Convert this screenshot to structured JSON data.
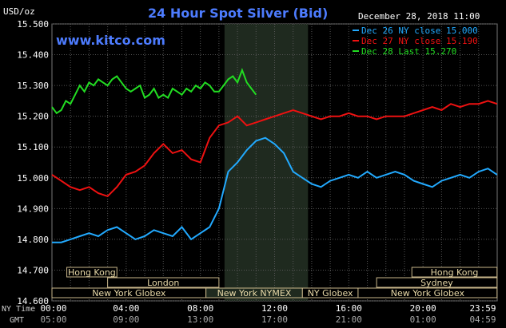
{
  "chart_data": {
    "type": "line",
    "title": "24 Hour Spot Silver (Bid)",
    "ylabel": "USD/oz",
    "date": "December 28, 2018 11:00",
    "watermark": "www.kitco.com",
    "ylim": [
      14.6,
      15.5
    ],
    "yticks": [
      "15.500",
      "15.400",
      "15.300",
      "15.200",
      "15.100",
      "15.000",
      "14.900",
      "14.800",
      "14.700",
      "14.600"
    ],
    "xlim": [
      0,
      24
    ],
    "xticks_ny": [
      "00:00",
      "04:00",
      "08:00",
      "12:00",
      "16:00",
      "20:00",
      "23:59"
    ],
    "xticks_gmt": [
      "05:00",
      "09:00",
      "13:00",
      "17:00",
      "21:00",
      "01:00",
      "04:59"
    ],
    "x_row_labels": [
      "NY Time",
      "GMT"
    ],
    "grid": true,
    "shaded_region": [
      9.3,
      13.8
    ],
    "legend_position": "top-right",
    "series": [
      {
        "name": "Dec 26 NY close 15.000",
        "color": "#22aaff",
        "x": [
          0,
          0.5,
          1,
          1.5,
          2,
          2.5,
          3,
          3.5,
          4,
          4.5,
          5,
          5.5,
          6,
          6.5,
          7,
          7.5,
          8,
          8.5,
          9,
          9.5,
          10,
          10.5,
          11,
          11.5,
          12,
          12.5,
          13,
          13.5,
          14,
          14.5,
          15,
          15.5,
          16,
          16.5,
          17,
          17.5,
          18,
          18.5,
          19,
          19.5,
          20,
          20.5,
          21,
          21.5,
          22,
          22.5,
          23,
          23.5,
          23.99
        ],
        "values": [
          14.79,
          14.79,
          14.8,
          14.81,
          14.82,
          14.81,
          14.83,
          14.84,
          14.82,
          14.8,
          14.81,
          14.83,
          14.82,
          14.81,
          14.84,
          14.8,
          14.82,
          14.84,
          14.9,
          15.02,
          15.05,
          15.09,
          15.12,
          15.13,
          15.11,
          15.08,
          15.02,
          15.0,
          14.98,
          14.97,
          14.99,
          15.0,
          15.01,
          15.0,
          15.02,
          15.0,
          15.01,
          15.02,
          15.01,
          14.99,
          14.98,
          14.97,
          14.99,
          15.0,
          15.01,
          15.0,
          15.02,
          15.03,
          15.01
        ]
      },
      {
        "name": "Dec 27 NY close 15.190",
        "color": "#ee1111",
        "x": [
          0,
          0.5,
          1,
          1.5,
          2,
          2.5,
          3,
          3.5,
          4,
          4.5,
          5,
          5.5,
          6,
          6.5,
          7,
          7.5,
          8,
          8.5,
          9,
          9.5,
          10,
          10.5,
          11,
          11.5,
          12,
          12.5,
          13,
          13.5,
          14,
          14.5,
          15,
          15.5,
          16,
          16.5,
          17,
          17.5,
          18,
          18.5,
          19,
          19.5,
          20,
          20.5,
          21,
          21.5,
          22,
          22.5,
          23,
          23.5,
          23.99
        ],
        "values": [
          15.01,
          14.99,
          14.97,
          14.96,
          14.97,
          14.95,
          14.94,
          14.97,
          15.01,
          15.02,
          15.04,
          15.08,
          15.11,
          15.08,
          15.09,
          15.06,
          15.05,
          15.13,
          15.17,
          15.18,
          15.2,
          15.17,
          15.18,
          15.19,
          15.2,
          15.21,
          15.22,
          15.21,
          15.2,
          15.19,
          15.2,
          15.2,
          15.21,
          15.2,
          15.2,
          15.19,
          15.2,
          15.2,
          15.2,
          15.21,
          15.22,
          15.23,
          15.22,
          15.24,
          15.23,
          15.24,
          15.24,
          15.25,
          15.24
        ]
      },
      {
        "name": "Dec 28 Last 15.270",
        "color": "#22dd22",
        "x": [
          0,
          0.25,
          0.5,
          0.75,
          1,
          1.25,
          1.5,
          1.75,
          2,
          2.25,
          2.5,
          2.75,
          3,
          3.25,
          3.5,
          3.75,
          4,
          4.25,
          4.5,
          4.75,
          5,
          5.25,
          5.5,
          5.75,
          6,
          6.25,
          6.5,
          6.75,
          7,
          7.25,
          7.5,
          7.75,
          8,
          8.25,
          8.5,
          8.75,
          9,
          9.25,
          9.5,
          9.75,
          10,
          10.25,
          10.5,
          10.75,
          11
        ],
        "values": [
          15.23,
          15.21,
          15.22,
          15.25,
          15.24,
          15.27,
          15.3,
          15.28,
          15.31,
          15.3,
          15.32,
          15.31,
          15.3,
          15.32,
          15.33,
          15.31,
          15.29,
          15.28,
          15.29,
          15.3,
          15.26,
          15.27,
          15.29,
          15.26,
          15.27,
          15.26,
          15.29,
          15.28,
          15.27,
          15.29,
          15.28,
          15.3,
          15.29,
          15.31,
          15.3,
          15.28,
          15.28,
          15.3,
          15.32,
          15.33,
          15.31,
          15.35,
          15.31,
          15.29,
          15.27
        ]
      }
    ],
    "markets": [
      {
        "name": "Hong Kong",
        "start": 0.8,
        "end": 3.5,
        "row": 0
      },
      {
        "name": "Hong Kong",
        "start": 19.4,
        "end": 23.99,
        "row": 0
      },
      {
        "name": "London",
        "start": 3,
        "end": 9,
        "row": 1
      },
      {
        "name": "Sydney",
        "start": 17.5,
        "end": 23.99,
        "row": 1
      },
      {
        "name": "New York Globex",
        "start": 0,
        "end": 8.3,
        "row": 2
      },
      {
        "name": "New York NYMEX",
        "start": 8.3,
        "end": 13.5,
        "row": 2
      },
      {
        "name": "NY Globex",
        "start": 13.5,
        "end": 16.5,
        "row": 2
      },
      {
        "name": "New York Globex",
        "start": 16.5,
        "end": 23.99,
        "row": 2
      }
    ]
  }
}
